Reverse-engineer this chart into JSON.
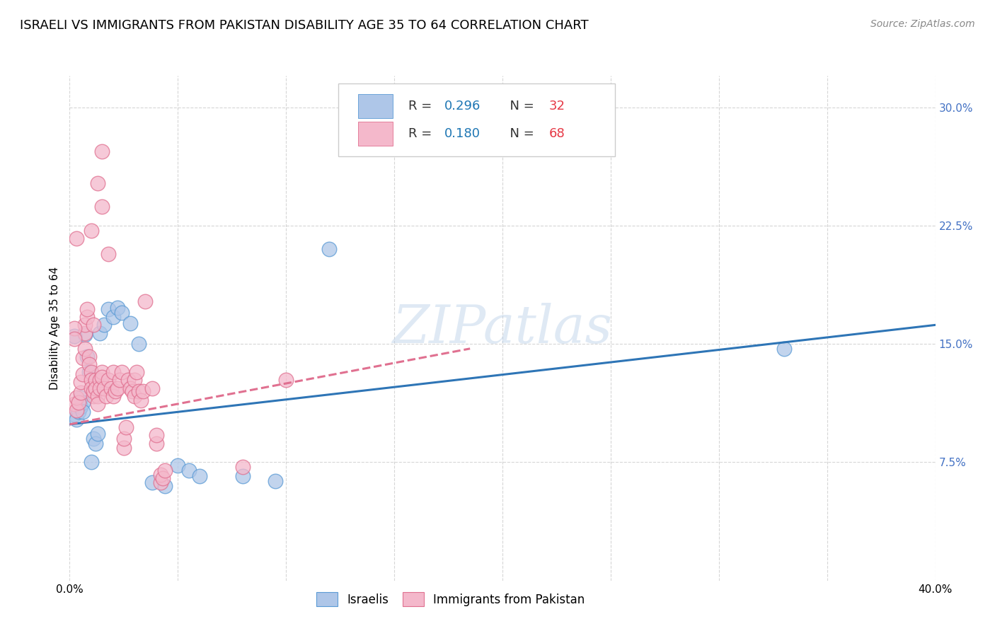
{
  "title": "ISRAELI VS IMMIGRANTS FROM PAKISTAN DISABILITY AGE 35 TO 64 CORRELATION CHART",
  "source": "Source: ZipAtlas.com",
  "ylabel": "Disability Age 35 to 64",
  "ylabel_right_ticks": [
    "7.5%",
    "15.0%",
    "22.5%",
    "30.0%"
  ],
  "ylabel_right_vals": [
    0.075,
    0.15,
    0.225,
    0.3
  ],
  "xlim": [
    0.0,
    0.4
  ],
  "ylim": [
    0.0,
    0.32
  ],
  "watermark": "ZIPatlas",
  "israelis": {
    "color": "#aec6e8",
    "edge_color": "#5b9bd5",
    "line_color": "#2e75b6",
    "points": [
      [
        0.002,
        0.105
      ],
      [
        0.003,
        0.102
      ],
      [
        0.004,
        0.107
      ],
      [
        0.005,
        0.11
      ],
      [
        0.005,
        0.116
      ],
      [
        0.006,
        0.113
      ],
      [
        0.006,
        0.107
      ],
      [
        0.007,
        0.156
      ],
      [
        0.008,
        0.142
      ],
      [
        0.009,
        0.132
      ],
      [
        0.01,
        0.075
      ],
      [
        0.011,
        0.09
      ],
      [
        0.012,
        0.087
      ],
      [
        0.013,
        0.093
      ],
      [
        0.014,
        0.157
      ],
      [
        0.016,
        0.162
      ],
      [
        0.018,
        0.172
      ],
      [
        0.02,
        0.167
      ],
      [
        0.022,
        0.173
      ],
      [
        0.024,
        0.17
      ],
      [
        0.028,
        0.163
      ],
      [
        0.032,
        0.15
      ],
      [
        0.038,
        0.062
      ],
      [
        0.044,
        0.06
      ],
      [
        0.05,
        0.073
      ],
      [
        0.055,
        0.07
      ],
      [
        0.06,
        0.066
      ],
      [
        0.08,
        0.066
      ],
      [
        0.095,
        0.063
      ],
      [
        0.12,
        0.21
      ],
      [
        0.33,
        0.147
      ],
      [
        0.002,
        0.155
      ]
    ],
    "trend_x": [
      0.0,
      0.4
    ],
    "trend_y": [
      0.099,
      0.162
    ]
  },
  "pakistan": {
    "color": "#f4b8cb",
    "edge_color": "#e07090",
    "line_color": "#e07090",
    "points": [
      [
        0.002,
        0.112
      ],
      [
        0.003,
        0.108
      ],
      [
        0.003,
        0.116
      ],
      [
        0.004,
        0.113
      ],
      [
        0.005,
        0.119
      ],
      [
        0.005,
        0.126
      ],
      [
        0.006,
        0.131
      ],
      [
        0.006,
        0.141
      ],
      [
        0.007,
        0.147
      ],
      [
        0.007,
        0.157
      ],
      [
        0.007,
        0.162
      ],
      [
        0.008,
        0.167
      ],
      [
        0.008,
        0.172
      ],
      [
        0.009,
        0.142
      ],
      [
        0.009,
        0.137
      ],
      [
        0.01,
        0.132
      ],
      [
        0.01,
        0.127
      ],
      [
        0.01,
        0.122
      ],
      [
        0.011,
        0.117
      ],
      [
        0.011,
        0.12
      ],
      [
        0.011,
        0.162
      ],
      [
        0.012,
        0.127
      ],
      [
        0.012,
        0.122
      ],
      [
        0.013,
        0.117
      ],
      [
        0.013,
        0.112
      ],
      [
        0.014,
        0.127
      ],
      [
        0.014,
        0.122
      ],
      [
        0.015,
        0.132
      ],
      [
        0.015,
        0.129
      ],
      [
        0.016,
        0.122
      ],
      [
        0.017,
        0.117
      ],
      [
        0.018,
        0.127
      ],
      [
        0.019,
        0.122
      ],
      [
        0.02,
        0.117
      ],
      [
        0.02,
        0.132
      ],
      [
        0.021,
        0.12
      ],
      [
        0.022,
        0.122
      ],
      [
        0.023,
        0.127
      ],
      [
        0.024,
        0.132
      ],
      [
        0.025,
        0.084
      ],
      [
        0.025,
        0.09
      ],
      [
        0.026,
        0.097
      ],
      [
        0.027,
        0.127
      ],
      [
        0.028,
        0.122
      ],
      [
        0.029,
        0.12
      ],
      [
        0.03,
        0.117
      ],
      [
        0.03,
        0.127
      ],
      [
        0.031,
        0.132
      ],
      [
        0.032,
        0.12
      ],
      [
        0.033,
        0.114
      ],
      [
        0.034,
        0.12
      ],
      [
        0.035,
        0.177
      ],
      [
        0.038,
        0.122
      ],
      [
        0.04,
        0.087
      ],
      [
        0.04,
        0.092
      ],
      [
        0.042,
        0.062
      ],
      [
        0.042,
        0.067
      ],
      [
        0.043,
        0.065
      ],
      [
        0.044,
        0.07
      ],
      [
        0.01,
        0.222
      ],
      [
        0.013,
        0.252
      ],
      [
        0.015,
        0.237
      ],
      [
        0.015,
        0.272
      ],
      [
        0.003,
        0.217
      ],
      [
        0.018,
        0.207
      ],
      [
        0.08,
        0.072
      ],
      [
        0.1,
        0.127
      ],
      [
        0.002,
        0.16
      ],
      [
        0.002,
        0.153
      ]
    ],
    "trend_x": [
      0.0,
      0.185
    ],
    "trend_y": [
      0.099,
      0.147
    ]
  },
  "background_color": "#ffffff",
  "grid_color": "#cccccc",
  "title_fontsize": 13,
  "axis_label_fontsize": 11,
  "tick_fontsize": 11,
  "source_fontsize": 10,
  "legend_r1_color": "#1f77b4",
  "legend_n1_color": "#e63946",
  "legend_r2_color": "#1f77b4",
  "legend_n2_color": "#e63946"
}
